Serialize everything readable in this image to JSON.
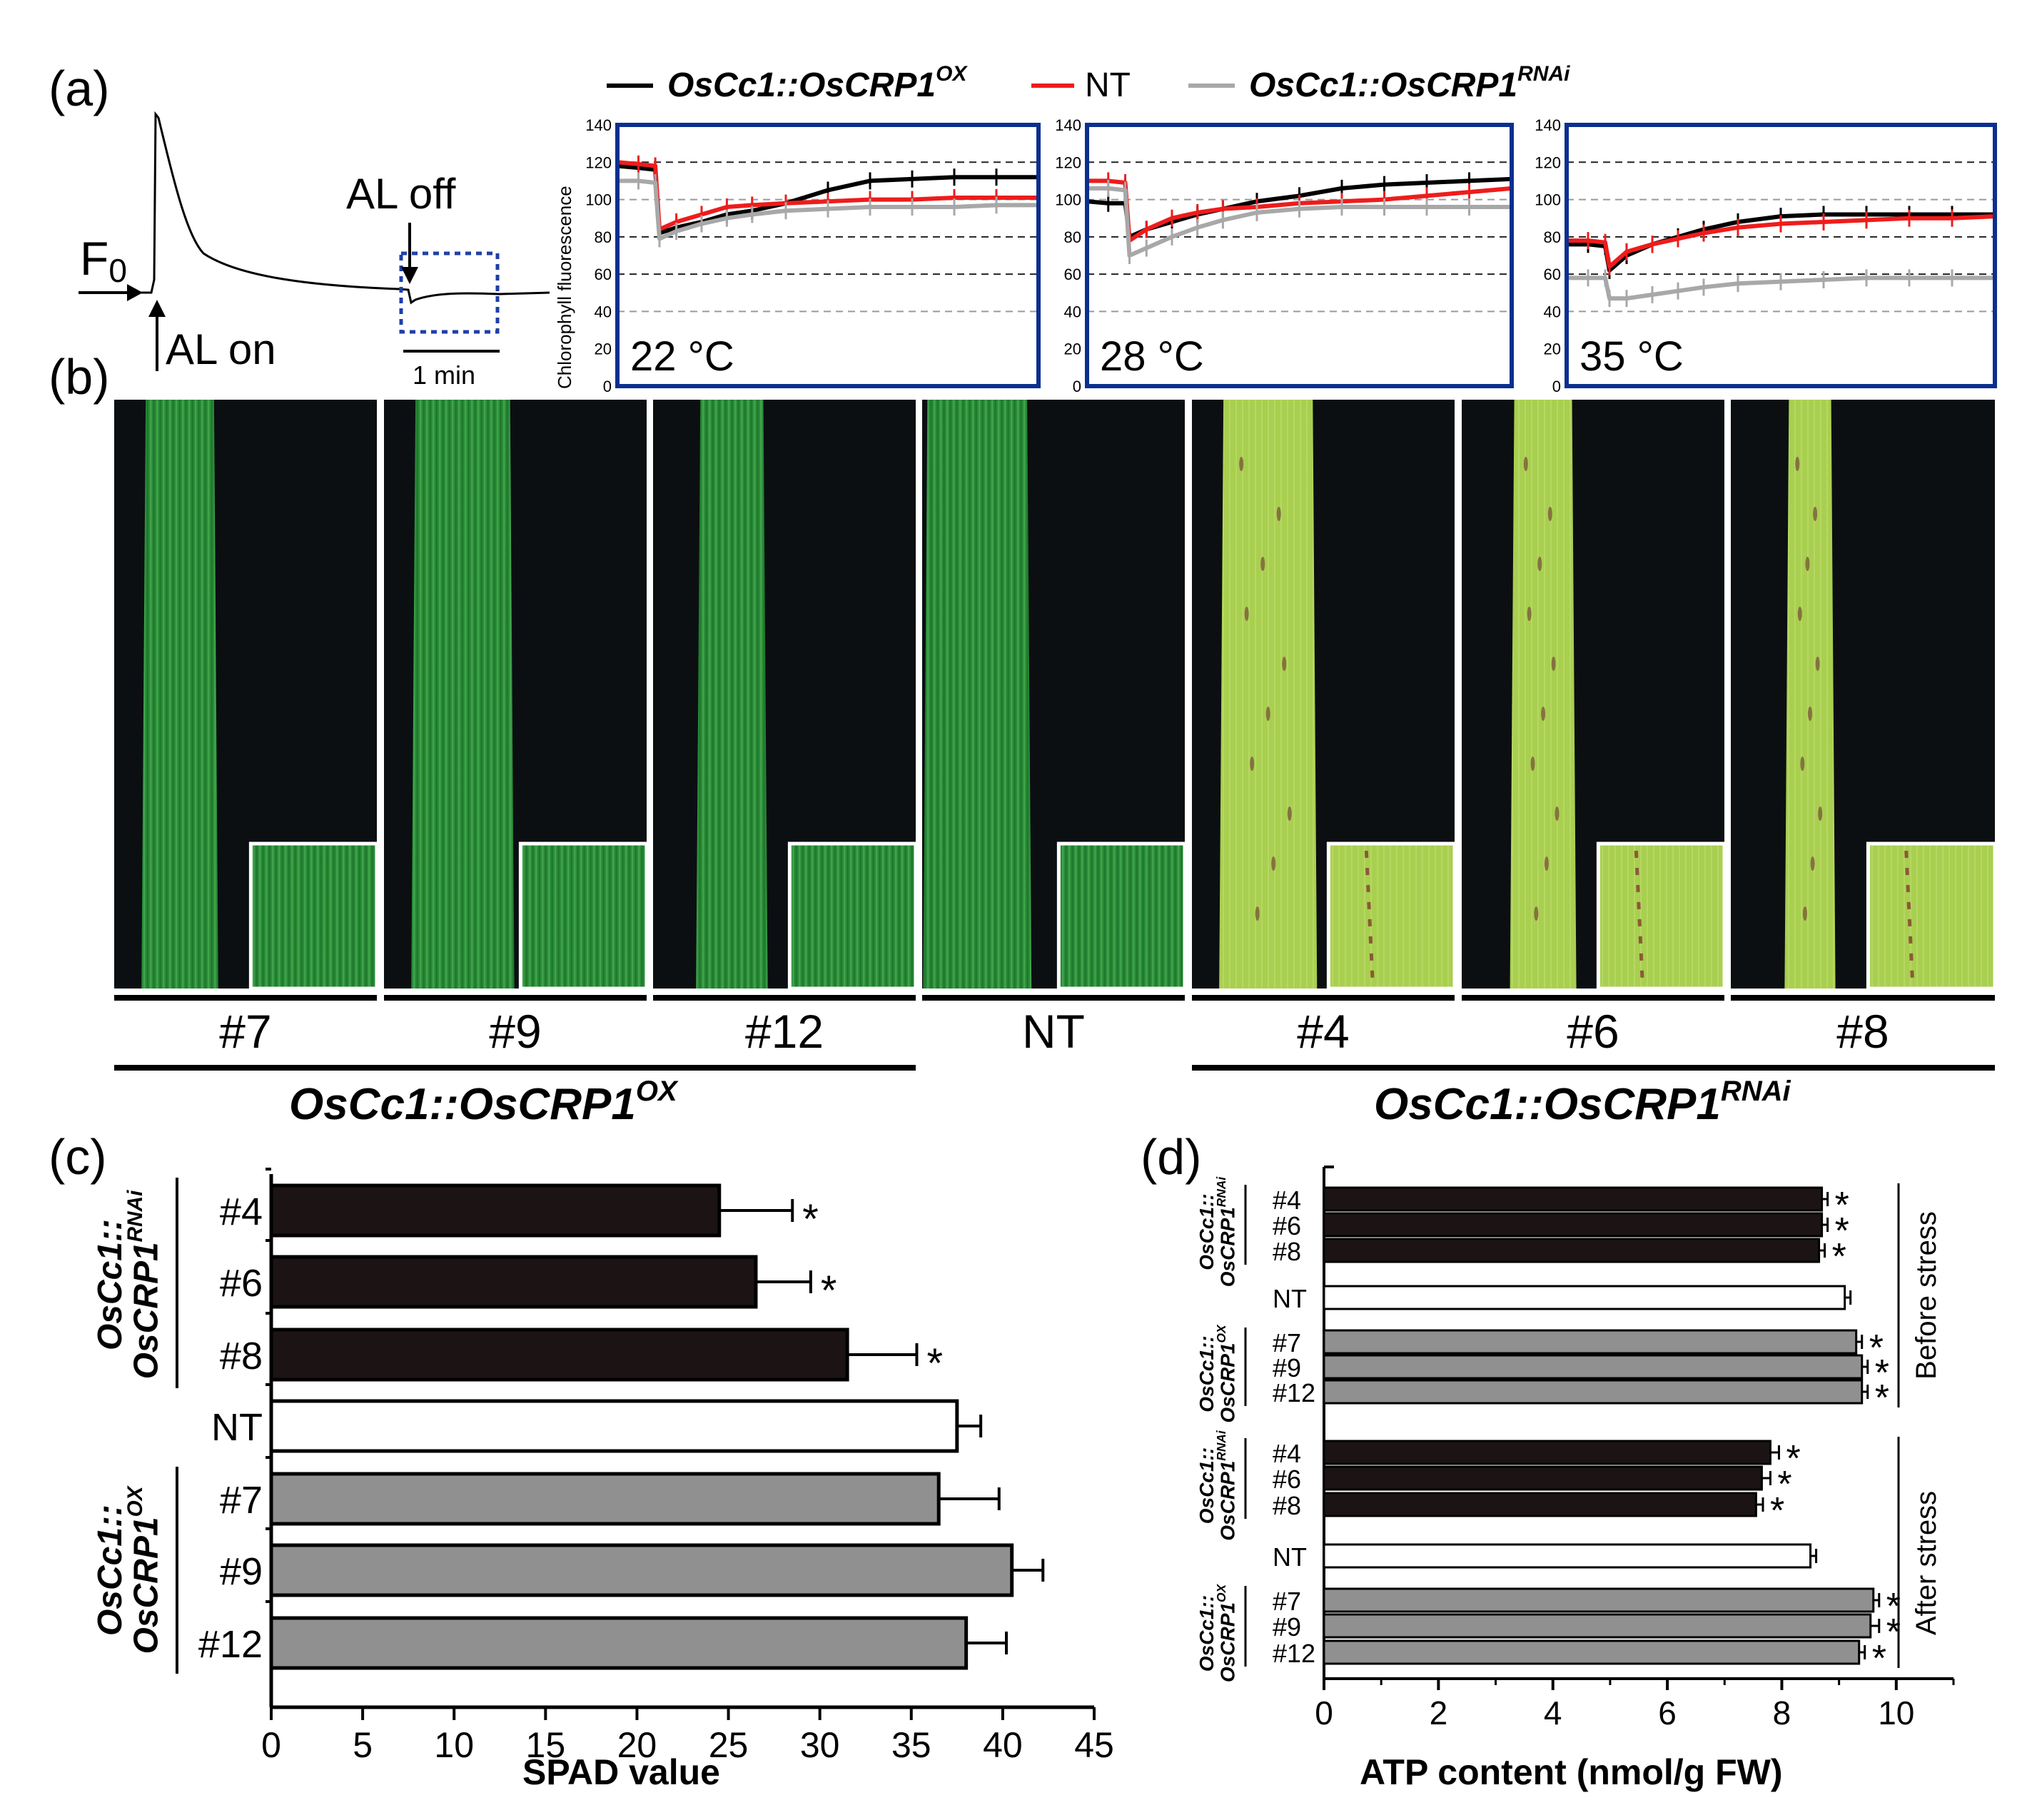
{
  "panel_labels": {
    "a": "(a)",
    "b": "(b)",
    "c": "(c)",
    "d": "(d)"
  },
  "colors": {
    "ox": "#000000",
    "nt": "#ee1c1c",
    "rnai": "#a8a8a8",
    "box": "#0b2f8f",
    "bar_rnai": "#1c1414",
    "bar_nt": "#ffffff",
    "bar_ox": "#909090"
  },
  "schematic": {
    "f0": "F",
    "f0_sub": "0",
    "al_on": "AL on",
    "al_off": "AL off",
    "scale": "1 min"
  },
  "legend": {
    "ox_main": "OsCc1::OsCRP1",
    "ox_sup": "OX",
    "nt": "NT",
    "rnai_main": "OsCc1::OsCRP1",
    "rnai_sup": "RNAi"
  },
  "chart_data": [
    {
      "type": "line",
      "title": "22 °C",
      "ylabel": "Chlorophyll fluorescence",
      "ylim": [
        0,
        140
      ],
      "yticks": [
        "0",
        "20",
        "40",
        "60",
        "80",
        "100",
        "120",
        "140"
      ],
      "x": [
        0,
        5,
        9,
        10,
        14,
        20,
        26,
        32,
        40,
        50,
        60,
        70,
        80,
        90,
        100
      ],
      "series": [
        {
          "name": "OsCc1::OsCRP1 OX",
          "values": [
            118,
            117,
            116,
            82,
            85,
            88,
            92,
            94,
            98,
            105,
            110,
            111,
            112,
            112,
            112
          ]
        },
        {
          "name": "NT",
          "values": [
            120,
            119,
            118,
            84,
            88,
            92,
            96,
            97,
            98,
            99,
            100,
            100,
            101,
            101,
            101
          ]
        },
        {
          "name": "OsCc1::OsCRP1 RNAi",
          "values": [
            110,
            110,
            109,
            79,
            83,
            87,
            90,
            92,
            94,
            95,
            96,
            96,
            96,
            97,
            97
          ]
        }
      ]
    },
    {
      "type": "line",
      "title": "28 °C",
      "ylim": [
        0,
        140
      ],
      "yticks": [
        "0",
        "20",
        "40",
        "60",
        "80",
        "100",
        "120",
        "140"
      ],
      "x": [
        0,
        5,
        9,
        10,
        14,
        20,
        26,
        32,
        40,
        50,
        60,
        70,
        80,
        90,
        100
      ],
      "series": [
        {
          "name": "OsCc1::OsCRP1 OX",
          "values": [
            99,
            98,
            98,
            80,
            84,
            88,
            92,
            95,
            99,
            102,
            106,
            108,
            109,
            110,
            111
          ]
        },
        {
          "name": "NT",
          "values": [
            110,
            110,
            109,
            78,
            84,
            90,
            93,
            95,
            96,
            98,
            99,
            100,
            102,
            104,
            106
          ]
        },
        {
          "name": "OsCc1::OsCRP1 RNAi",
          "values": [
            106,
            106,
            105,
            70,
            74,
            80,
            85,
            89,
            93,
            95,
            96,
            96,
            96,
            96,
            96
          ]
        }
      ]
    },
    {
      "type": "line",
      "title": "35 °C",
      "ylim": [
        0,
        140
      ],
      "yticks": [
        "0",
        "20",
        "40",
        "60",
        "80",
        "100",
        "120",
        "140"
      ],
      "x": [
        0,
        5,
        9,
        10,
        14,
        20,
        26,
        32,
        40,
        50,
        60,
        70,
        80,
        90,
        100
      ],
      "series": [
        {
          "name": "OsCc1::OsCRP1 OX",
          "values": [
            76,
            76,
            75,
            62,
            70,
            76,
            80,
            84,
            88,
            91,
            92,
            92,
            92,
            92,
            92
          ]
        },
        {
          "name": "NT",
          "values": [
            78,
            78,
            77,
            64,
            72,
            76,
            79,
            82,
            85,
            87,
            88,
            89,
            90,
            90,
            91
          ]
        },
        {
          "name": "OsCc1::OsCRP1 RNAi",
          "values": [
            58,
            58,
            58,
            47,
            47,
            49,
            51,
            53,
            55,
            56,
            57,
            58,
            58,
            58,
            58
          ]
        }
      ]
    },
    {
      "type": "bar",
      "orientation": "horizontal",
      "xlabel": "SPAD value",
      "xlim": [
        0,
        45
      ],
      "xticks": [
        "0",
        "5",
        "10",
        "15",
        "20",
        "25",
        "30",
        "35",
        "40",
        "45"
      ],
      "group_labels": [
        {
          "main": "OsCc1::",
          "sub": "OsCRP1",
          "sup": "RNAi"
        },
        {
          "main": "OsCc1::",
          "sub": "OsCRP1",
          "sup": "OX"
        }
      ],
      "categories": [
        "#4",
        "#6",
        "#8",
        "NT",
        "#7",
        "#9",
        "#12"
      ],
      "values": [
        24.5,
        26.5,
        31.5,
        37.5,
        36.5,
        40.5,
        38.0
      ],
      "errors": [
        4.0,
        3.0,
        3.8,
        1.3,
        3.3,
        1.7,
        2.2
      ],
      "significance": [
        "*",
        "*",
        "*",
        "",
        "",
        "",
        ""
      ]
    },
    {
      "type": "bar",
      "orientation": "horizontal",
      "xlabel": "ATP content (nmol/g FW)",
      "xlim": [
        0,
        11
      ],
      "xticks": [
        "0",
        "2",
        "4",
        "6",
        "8",
        "10"
      ],
      "group_labels": [
        {
          "main": "OsCc1::",
          "sub": "OsCRP1",
          "sup": "RNAi"
        },
        {
          "main": "OsCc1::",
          "sub": "OsCRP1",
          "sup": "OX"
        }
      ],
      "sections": [
        {
          "label": "Before stress",
          "categories": [
            "#4",
            "#6",
            "#8",
            "NT",
            "#7",
            "#9",
            "#12"
          ],
          "values": [
            8.7,
            8.7,
            8.65,
            9.1,
            9.3,
            9.4,
            9.4
          ],
          "errors": [
            0.1,
            0.1,
            0.1,
            0.1,
            0.1,
            0.1,
            0.1
          ],
          "significance": [
            "*",
            "*",
            "*",
            "",
            "*",
            "*",
            "*"
          ]
        },
        {
          "label": "After stress",
          "categories": [
            "#4",
            "#6",
            "#8",
            "NT",
            "#7",
            "#9",
            "#12"
          ],
          "values": [
            7.8,
            7.65,
            7.55,
            8.5,
            9.6,
            9.55,
            9.35
          ],
          "errors": [
            0.15,
            0.15,
            0.12,
            0.1,
            0.1,
            0.15,
            0.1
          ],
          "significance": [
            "*",
            "*",
            "*",
            "",
            "*",
            "*",
            "*"
          ]
        }
      ]
    }
  ],
  "leaf_panel": {
    "labels": [
      "#7",
      "#9",
      "#12",
      "NT",
      "#4",
      "#6",
      "#8"
    ],
    "group_ox": {
      "main": "OsCc1::OsCRP1",
      "sup": "OX"
    },
    "group_rnai": {
      "main": "OsCc1::OsCRP1",
      "sup": "RNAi"
    }
  }
}
